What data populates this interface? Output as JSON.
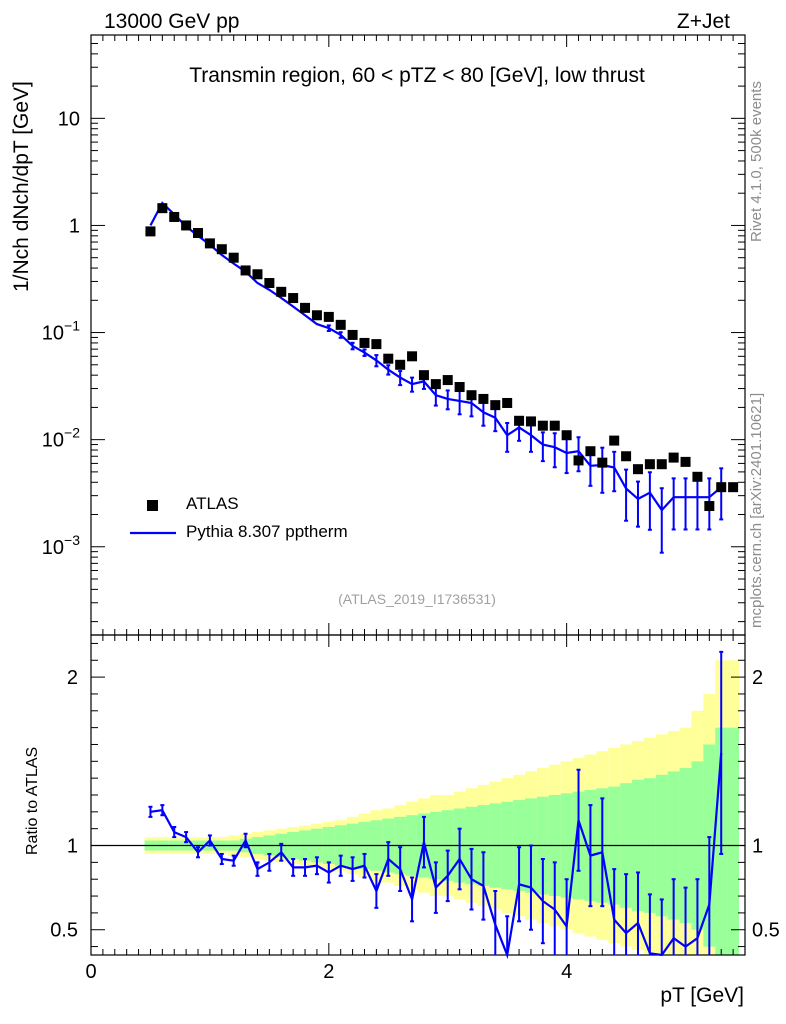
{
  "header": {
    "left": "13000 GeV pp",
    "right": "Z+Jet"
  },
  "side_labels": {
    "rivet": "Rivet 4.1.0,  500k events",
    "mcplots": "mcplots.cern.ch [arXiv:2401.10621]"
  },
  "chart_data": [
    {
      "type": "scatter",
      "name": "main-panel",
      "title": "Transmin region, 60 < pTZ < 80 [GeV], low thrust",
      "ylabel": "1/Nch dNch/dpT [GeV]",
      "yscale": "log",
      "xlim": [
        0,
        5.5
      ],
      "ylim": [
        0.00015,
        60
      ],
      "yticks": [
        "10^-3",
        "10^-2",
        "10^-1",
        "1",
        "10"
      ],
      "watermark": "(ATLAS_2019_I1736531)",
      "legend_position": "bottom-left",
      "series": [
        {
          "name": "ATLAS",
          "marker": "square",
          "color": "#000000",
          "x": [
            0.5,
            0.6,
            0.7,
            0.8,
            0.9,
            1.0,
            1.1,
            1.2,
            1.3,
            1.4,
            1.5,
            1.6,
            1.7,
            1.8,
            1.9,
            2.0,
            2.1,
            2.2,
            2.3,
            2.4,
            2.5,
            2.6,
            2.7,
            2.8,
            2.9,
            3.0,
            3.1,
            3.2,
            3.3,
            3.4,
            3.5,
            3.6,
            3.7,
            3.8,
            3.9,
            4.0,
            4.1,
            4.2,
            4.3,
            4.4,
            4.5,
            4.6,
            4.7,
            4.8,
            4.9,
            5.0,
            5.1,
            5.2,
            5.3,
            5.4
          ],
          "y": [
            0.88,
            1.45,
            1.2,
            1.0,
            0.85,
            0.68,
            0.6,
            0.5,
            0.38,
            0.35,
            0.29,
            0.24,
            0.21,
            0.17,
            0.145,
            0.14,
            0.118,
            0.095,
            0.08,
            0.078,
            0.057,
            0.05,
            0.06,
            0.04,
            0.033,
            0.036,
            0.031,
            0.026,
            0.024,
            0.021,
            0.022,
            0.015,
            0.0148,
            0.0135,
            0.0135,
            0.011,
            0.0064,
            0.0078,
            0.0061,
            0.0098,
            0.007,
            0.0053,
            0.0059,
            0.0059,
            0.0068,
            0.0062,
            0.0045,
            0.0024,
            0.0036,
            0.0036
          ]
        },
        {
          "name": "Pythia 8.307 pptherm",
          "marker": "line",
          "color": "#0000ff",
          "x": [
            0.5,
            0.6,
            0.7,
            0.8,
            0.9,
            1.0,
            1.1,
            1.2,
            1.3,
            1.4,
            1.5,
            1.6,
            1.7,
            1.8,
            1.9,
            2.0,
            2.1,
            2.2,
            2.3,
            2.4,
            2.5,
            2.6,
            2.7,
            2.8,
            2.9,
            3.0,
            3.1,
            3.2,
            3.3,
            3.4,
            3.5,
            3.6,
            3.7,
            3.8,
            3.9,
            4.0,
            4.1,
            4.2,
            4.3,
            4.4,
            4.5,
            4.6,
            4.7,
            4.8,
            4.9,
            5.0,
            5.1,
            5.2,
            5.3
          ],
          "y": [
            1.0,
            1.62,
            1.27,
            0.98,
            0.8,
            0.66,
            0.53,
            0.44,
            0.37,
            0.29,
            0.25,
            0.21,
            0.175,
            0.145,
            0.12,
            0.11,
            0.095,
            0.075,
            0.065,
            0.055,
            0.045,
            0.038,
            0.033,
            0.035,
            0.026,
            0.024,
            0.023,
            0.022,
            0.018,
            0.016,
            0.011,
            0.013,
            0.011,
            0.009,
            0.0085,
            0.0075,
            0.0078,
            0.0057,
            0.0058,
            0.0055,
            0.0035,
            0.0028,
            0.0032,
            0.0022,
            0.0029,
            0.0029,
            0.0029,
            0.0029,
            0.0036
          ],
          "yerr_rel": [
            0.03,
            0.03,
            0.03,
            0.03,
            0.03,
            0.03,
            0.03,
            0.03,
            0.03,
            0.03,
            0.05,
            0.05,
            0.05,
            0.05,
            0.05,
            0.06,
            0.06,
            0.07,
            0.07,
            0.12,
            0.1,
            0.15,
            0.15,
            0.15,
            0.2,
            0.2,
            0.25,
            0.25,
            0.25,
            0.25,
            0.3,
            0.25,
            0.3,
            0.3,
            0.35,
            0.35,
            0.35,
            0.35,
            0.45,
            0.4,
            0.5,
            0.45,
            0.55,
            0.6,
            0.5,
            0.5,
            0.5,
            0.5,
            0.5
          ]
        }
      ]
    },
    {
      "type": "line",
      "name": "ratio-panel",
      "xlabel": "pT [GeV]",
      "ylabel": "Ratio to ATLAS",
      "xlim": [
        0,
        5.5
      ],
      "ylim": [
        0.35,
        2.25
      ],
      "xticks": [
        "0",
        "2",
        "4"
      ],
      "yticks": [
        "0.5",
        "1",
        "2"
      ],
      "bands": {
        "x": [
          0.5,
          0.6,
          0.7,
          0.8,
          0.9,
          1.0,
          1.1,
          1.2,
          1.3,
          1.4,
          1.5,
          1.6,
          1.7,
          1.8,
          1.9,
          2.0,
          2.1,
          2.2,
          2.3,
          2.4,
          2.5,
          2.6,
          2.7,
          2.8,
          2.9,
          3.0,
          3.1,
          3.2,
          3.3,
          3.4,
          3.5,
          3.6,
          3.7,
          3.8,
          3.9,
          4.0,
          4.1,
          4.2,
          4.3,
          4.4,
          4.5,
          4.6,
          4.7,
          4.8,
          4.9,
          5.0,
          5.1,
          5.2,
          5.3,
          5.4
        ],
        "green_half": [
          0.03,
          0.03,
          0.03,
          0.03,
          0.03,
          0.03,
          0.03,
          0.03,
          0.04,
          0.05,
          0.06,
          0.07,
          0.08,
          0.09,
          0.1,
          0.11,
          0.12,
          0.13,
          0.14,
          0.15,
          0.16,
          0.17,
          0.18,
          0.19,
          0.2,
          0.21,
          0.22,
          0.23,
          0.24,
          0.25,
          0.26,
          0.27,
          0.28,
          0.29,
          0.3,
          0.31,
          0.32,
          0.33,
          0.34,
          0.35,
          0.37,
          0.39,
          0.4,
          0.42,
          0.44,
          0.46,
          0.5,
          0.6,
          0.7,
          0.7
        ],
        "yellow_half": [
          0.05,
          0.05,
          0.05,
          0.05,
          0.05,
          0.05,
          0.05,
          0.06,
          0.07,
          0.08,
          0.09,
          0.1,
          0.11,
          0.12,
          0.13,
          0.14,
          0.15,
          0.17,
          0.19,
          0.21,
          0.22,
          0.24,
          0.26,
          0.28,
          0.3,
          0.3,
          0.32,
          0.34,
          0.36,
          0.38,
          0.4,
          0.42,
          0.44,
          0.46,
          0.48,
          0.5,
          0.52,
          0.54,
          0.56,
          0.58,
          0.6,
          0.62,
          0.64,
          0.66,
          0.68,
          0.7,
          0.8,
          0.9,
          1.1,
          1.1
        ]
      },
      "series": [
        {
          "name": "Pythia 8.307 pptherm / ATLAS",
          "color": "#0000ff",
          "x": [
            0.5,
            0.6,
            0.7,
            0.8,
            0.9,
            1.0,
            1.1,
            1.2,
            1.3,
            1.4,
            1.5,
            1.6,
            1.7,
            1.8,
            1.9,
            2.0,
            2.1,
            2.2,
            2.3,
            2.4,
            2.5,
            2.6,
            2.7,
            2.8,
            2.9,
            3.0,
            3.1,
            3.2,
            3.3,
            3.4,
            3.5,
            3.6,
            3.7,
            3.8,
            3.9,
            4.0,
            4.1,
            4.2,
            4.3,
            4.4,
            4.5,
            4.6,
            4.7,
            4.8,
            4.9,
            5.0,
            5.1,
            5.2,
            5.3
          ],
          "y": [
            1.2,
            1.21,
            1.08,
            1.05,
            0.96,
            1.03,
            0.92,
            0.91,
            1.03,
            0.86,
            0.9,
            0.96,
            0.87,
            0.87,
            0.88,
            0.84,
            0.88,
            0.86,
            0.88,
            0.73,
            0.92,
            0.86,
            0.68,
            1.02,
            0.75,
            0.82,
            0.92,
            0.8,
            0.76,
            0.53,
            0.33,
            0.77,
            0.75,
            0.67,
            0.62,
            0.52,
            1.15,
            0.94,
            0.96,
            0.56,
            0.48,
            0.54,
            0.36,
            0.33,
            0.45,
            0.4,
            0.45,
            0.65,
            1.55
          ],
          "yerr": [
            0.03,
            0.03,
            0.03,
            0.03,
            0.03,
            0.03,
            0.03,
            0.03,
            0.04,
            0.04,
            0.05,
            0.05,
            0.05,
            0.05,
            0.05,
            0.06,
            0.06,
            0.07,
            0.07,
            0.1,
            0.1,
            0.13,
            0.13,
            0.15,
            0.15,
            0.15,
            0.18,
            0.18,
            0.2,
            0.2,
            0.25,
            0.22,
            0.25,
            0.25,
            0.28,
            0.28,
            0.3,
            0.3,
            0.32,
            0.3,
            0.35,
            0.3,
            0.35,
            0.35,
            0.35,
            0.35,
            0.35,
            0.4,
            0.6
          ]
        }
      ]
    }
  ]
}
